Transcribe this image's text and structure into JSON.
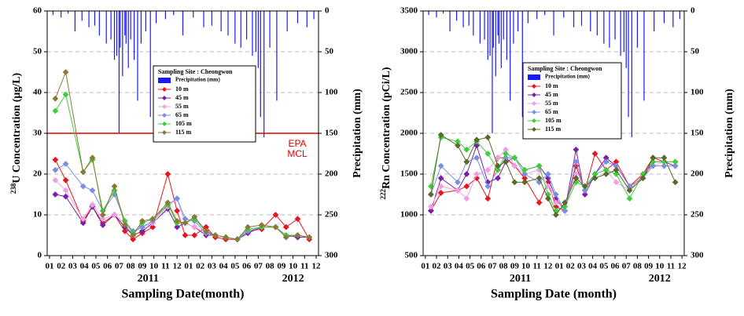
{
  "chart_data": [
    {
      "type": "line",
      "y_label_sup": "238",
      "y_label": "U Concentration (μg/L)",
      "y2_label": "Precipitation (mm)",
      "x_label": "Sampling Date(month)",
      "years": [
        "2011",
        "2012"
      ],
      "legend_title": "Sampling Site : Cheongwon",
      "precip_name": "Precipitation (mm)",
      "precip_color": "#1a1aff",
      "reference_line": {
        "value": 30,
        "color": "#e00000",
        "label": [
          "EPA",
          "MCL"
        ]
      },
      "xlim": [
        0.8,
        24.2
      ],
      "xticks": [
        {
          "value": 1,
          "label": "01"
        },
        {
          "value": 2,
          "label": "02"
        },
        {
          "value": 3,
          "label": "03"
        },
        {
          "value": 4,
          "label": "04"
        },
        {
          "value": 5,
          "label": "05"
        },
        {
          "value": 6,
          "label": "06"
        },
        {
          "value": 7,
          "label": "07"
        },
        {
          "value": 8,
          "label": "08"
        },
        {
          "value": 9,
          "label": "09"
        },
        {
          "value": 10,
          "label": "10"
        },
        {
          "value": 11,
          "label": "11"
        },
        {
          "value": 12,
          "label": "12"
        },
        {
          "value": 13,
          "label": "01"
        },
        {
          "value": 14,
          "label": "02"
        },
        {
          "value": 15,
          "label": "03"
        },
        {
          "value": 16,
          "label": "04"
        },
        {
          "value": 17,
          "label": "05"
        },
        {
          "value": 18,
          "label": "06"
        },
        {
          "value": 19,
          "label": "07"
        },
        {
          "value": 20,
          "label": "08"
        },
        {
          "value": 21,
          "label": "09"
        },
        {
          "value": 22,
          "label": "10"
        },
        {
          "value": 23,
          "label": "11"
        },
        {
          "value": 24,
          "label": "12"
        }
      ],
      "ylim": [
        0,
        60
      ],
      "yticks": [
        0,
        10,
        20,
        30,
        40,
        50,
        60
      ],
      "y2lim": [
        300,
        0
      ],
      "y2ticks": [
        0,
        50,
        100,
        150,
        200,
        250,
        300
      ],
      "grid": true,
      "x": [
        1.5,
        2.4,
        3.9,
        4.7,
        5.6,
        6.6,
        7.5,
        8.2,
        9.0,
        9.9,
        11.2,
        12.0,
        12.7,
        13.5,
        14.5,
        15.3,
        16.2,
        17.2,
        18.1,
        19.3,
        20.5,
        21.4,
        22.4,
        23.4
      ],
      "series": [
        {
          "name": "10 m",
          "color": "#e8141e",
          "values": [
            23.5,
            18.5,
            8.5,
            12,
            8,
            10,
            6,
            4,
            5.5,
            7,
            20,
            11,
            5,
            5,
            7,
            4.5,
            4,
            4,
            6,
            6.5,
            10,
            7,
            9,
            4
          ]
        },
        {
          "name": "45 m",
          "color": "#7a1fa8",
          "values": [
            15,
            14.5,
            8,
            12,
            7.5,
            10,
            7,
            5,
            6,
            8,
            11.5,
            7,
            8,
            7,
            5,
            5,
            4.5,
            4,
            5.5,
            7,
            7,
            5,
            4.5,
            4.5
          ]
        },
        {
          "name": "55 m",
          "color": "#f0a0e0",
          "values": [
            18.5,
            16,
            9,
            12.5,
            9,
            10,
            8,
            5.5,
            7,
            8,
            12,
            14,
            8,
            7,
            5.5,
            5,
            4.5,
            4,
            6,
            7,
            7,
            4.5,
            5,
            4.5
          ]
        },
        {
          "name": "65 m",
          "color": "#7a8fe0",
          "values": [
            21,
            22.5,
            17,
            16,
            11,
            15,
            8.5,
            6,
            7,
            8.5,
            12.5,
            14,
            9,
            8.5,
            5.5,
            5,
            4.5,
            4,
            6,
            7,
            7,
            5,
            5,
            4.5
          ]
        },
        {
          "name": "105 m",
          "color": "#3ecf3e",
          "values": [
            35.5,
            39.5,
            20.5,
            23.5,
            11,
            16,
            8.5,
            5.5,
            8,
            9,
            12.5,
            8,
            8,
            9,
            6,
            5,
            4.5,
            4,
            6.5,
            7,
            7,
            5,
            5,
            4.5
          ]
        },
        {
          "name": "115 m",
          "color": "#8a7a3a",
          "values": [
            38.5,
            45,
            20.5,
            24,
            10,
            17,
            7.5,
            5,
            8.5,
            9,
            13,
            8.5,
            8,
            9.5,
            6,
            5,
            4.5,
            4,
            7,
            7.5,
            7,
            4.5,
            5,
            4.5
          ]
        }
      ],
      "precip_x": [
        1.3,
        2.0,
        2.6,
        3.2,
        3.8,
        4.4,
        4.9,
        5.3,
        5.9,
        6.3,
        6.6,
        6.8,
        7.0,
        7.1,
        7.3,
        7.5,
        7.6,
        7.8,
        8.0,
        8.3,
        8.6,
        8.9,
        9.3,
        9.7,
        10.2,
        11.0,
        11.7,
        12.5,
        13.4,
        14.3,
        15.0,
        15.8,
        16.4,
        17.0,
        17.5,
        18.0,
        18.5,
        18.8,
        19.0,
        19.2,
        19.5,
        20.0,
        20.6,
        21.5,
        22.4,
        23.2,
        23.8
      ],
      "precip": [
        5,
        8,
        3,
        25,
        12,
        20,
        18,
        30,
        40,
        35,
        60,
        55,
        150,
        45,
        80,
        30,
        40,
        70,
        35,
        60,
        110,
        40,
        25,
        130,
        15,
        10,
        5,
        30,
        8,
        20,
        18,
        25,
        30,
        40,
        45,
        35,
        55,
        50,
        70,
        130,
        155,
        45,
        110,
        25,
        15,
        20,
        10
      ]
    },
    {
      "type": "line",
      "y_label_sup": "222",
      "y_label": "Rn Concentration (pCi/L)",
      "y2_label": "Precipitation (mm)",
      "x_label": "Sampling Date (month)",
      "years": [
        "2011",
        "2012"
      ],
      "legend_title": "Sampling Site : Cheongwon",
      "precip_name": "Precipitation (mm)",
      "precip_color": "#1a1aff",
      "xlim": [
        0.8,
        24.2
      ],
      "xticks": [
        {
          "value": 1,
          "label": "01"
        },
        {
          "value": 2,
          "label": "02"
        },
        {
          "value": 3,
          "label": "03"
        },
        {
          "value": 4,
          "label": "04"
        },
        {
          "value": 5,
          "label": "05"
        },
        {
          "value": 6,
          "label": "06"
        },
        {
          "value": 7,
          "label": "07"
        },
        {
          "value": 8,
          "label": "08"
        },
        {
          "value": 9,
          "label": "09"
        },
        {
          "value": 10,
          "label": "10"
        },
        {
          "value": 11,
          "label": "11"
        },
        {
          "value": 12,
          "label": "12"
        },
        {
          "value": 13,
          "label": "01"
        },
        {
          "value": 14,
          "label": "02"
        },
        {
          "value": 15,
          "label": "03"
        },
        {
          "value": 16,
          "label": "04"
        },
        {
          "value": 17,
          "label": "05"
        },
        {
          "value": 18,
          "label": "06"
        },
        {
          "value": 19,
          "label": "07"
        },
        {
          "value": 20,
          "label": "08"
        },
        {
          "value": 21,
          "label": "09"
        },
        {
          "value": 22,
          "label": "10"
        },
        {
          "value": 23,
          "label": "11"
        },
        {
          "value": 24,
          "label": "12"
        }
      ],
      "ylim": [
        500,
        3500
      ],
      "yticks": [
        500,
        1000,
        1500,
        2000,
        2500,
        3000,
        3500
      ],
      "y2lim": [
        300,
        0
      ],
      "y2ticks": [
        0,
        50,
        100,
        150,
        200,
        250,
        300
      ],
      "grid": true,
      "x": [
        1.5,
        2.4,
        3.9,
        4.7,
        5.6,
        6.6,
        7.5,
        8.2,
        9.0,
        9.9,
        11.2,
        12.0,
        12.7,
        13.5,
        14.5,
        15.3,
        16.2,
        17.2,
        18.1,
        19.3,
        20.5,
        21.4,
        22.4,
        23.4
      ],
      "series": [
        {
          "name": "10 m",
          "color": "#e8141e",
          "values": [
            1050,
            1270,
            1300,
            1350,
            1450,
            1200,
            1700,
            1700,
            1600,
            1450,
            1150,
            1400,
            1100,
            1050,
            1600,
            1300,
            1750,
            1550,
            1650,
            1350,
            1500,
            1700,
            1650,
            1650
          ]
        },
        {
          "name": "45 m",
          "color": "#7a1fa8",
          "values": [
            1050,
            1450,
            1300,
            1500,
            1850,
            1400,
            1450,
            1650,
            1700,
            1550,
            1600,
            1450,
            1200,
            1050,
            1800,
            1250,
            1500,
            1700,
            1600,
            1350,
            1450,
            1650,
            1650,
            1600
          ]
        },
        {
          "name": "55 m",
          "color": "#f0a0e0",
          "values": [
            1100,
            1350,
            1300,
            1200,
            1500,
            1550,
            1700,
            1800,
            1600,
            1500,
            1550,
            1350,
            1150,
            1100,
            1500,
            1300,
            1500,
            1550,
            1400,
            1300,
            1500,
            1600,
            1650,
            1650
          ]
        },
        {
          "name": "65 m",
          "color": "#7a8fe0",
          "values": [
            1250,
            1600,
            1400,
            1650,
            1700,
            1350,
            1550,
            1700,
            1700,
            1500,
            1400,
            1500,
            1250,
            1050,
            1650,
            1300,
            1500,
            1650,
            1600,
            1350,
            1450,
            1600,
            1600,
            1600
          ]
        },
        {
          "name": "105 m",
          "color": "#3ecf3e",
          "values": [
            1350,
            1950,
            1900,
            1800,
            1900,
            1750,
            1550,
            1750,
            1700,
            1550,
            1600,
            1250,
            1050,
            1100,
            1400,
            1350,
            1500,
            1550,
            1500,
            1200,
            1500,
            1650,
            1650,
            1650
          ]
        },
        {
          "name": "115 m",
          "color": "#5a6a2a",
          "values": [
            1250,
            1980,
            1850,
            1650,
            1920,
            1950,
            1600,
            1650,
            1400,
            1400,
            1450,
            1200,
            1000,
            1150,
            1450,
            1350,
            1450,
            1500,
            1550,
            1300,
            1450,
            1700,
            1700,
            1400
          ]
        }
      ],
      "precip_x": [
        1.3,
        2.0,
        2.6,
        3.2,
        3.8,
        4.4,
        4.9,
        5.3,
        5.9,
        6.3,
        6.6,
        6.8,
        7.0,
        7.1,
        7.3,
        7.5,
        7.6,
        7.8,
        8.0,
        8.3,
        8.6,
        8.9,
        9.3,
        9.7,
        10.2,
        11.0,
        11.7,
        12.5,
        13.4,
        14.3,
        15.0,
        15.8,
        16.4,
        17.0,
        17.5,
        18.0,
        18.5,
        18.8,
        19.0,
        19.2,
        19.5,
        20.0,
        20.6,
        21.5,
        22.4,
        23.2,
        23.8
      ],
      "precip": [
        5,
        8,
        3,
        25,
        12,
        20,
        18,
        30,
        40,
        35,
        60,
        55,
        150,
        45,
        80,
        30,
        40,
        70,
        35,
        60,
        110,
        40,
        25,
        130,
        15,
        10,
        5,
        30,
        8,
        20,
        18,
        25,
        30,
        40,
        45,
        35,
        55,
        50,
        70,
        130,
        155,
        45,
        110,
        25,
        15,
        20,
        10
      ]
    }
  ]
}
